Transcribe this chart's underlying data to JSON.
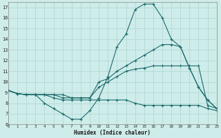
{
  "xlabel": "Humidex (Indice chaleur)",
  "xlim": [
    0,
    23
  ],
  "ylim": [
    6,
    17.5
  ],
  "xticks": [
    0,
    1,
    2,
    3,
    4,
    5,
    6,
    7,
    8,
    9,
    10,
    11,
    12,
    13,
    14,
    15,
    16,
    17,
    18,
    19,
    20,
    21,
    22,
    23
  ],
  "yticks": [
    6,
    7,
    8,
    9,
    10,
    11,
    12,
    13,
    14,
    15,
    16,
    17
  ],
  "bg_color": "#ceecea",
  "grid_color": "#b2d8d4",
  "line_color": "#1a6b6b",
  "lines": [
    {
      "x": [
        0,
        1,
        2,
        3,
        4,
        5,
        6,
        7,
        8,
        9,
        10,
        11,
        12,
        13,
        14,
        15,
        16,
        17,
        18,
        19,
        20,
        21,
        22,
        23
      ],
      "y": [
        9.2,
        8.9,
        8.8,
        8.8,
        8.0,
        7.5,
        7.0,
        6.5,
        6.5,
        7.3,
        8.5,
        10.5,
        13.3,
        14.5,
        16.8,
        17.3,
        17.3,
        16.0,
        14.0,
        13.3,
        11.3,
        9.5,
        8.3,
        7.5
      ]
    },
    {
      "x": [
        0,
        1,
        2,
        3,
        4,
        5,
        6,
        7,
        8,
        9,
        10,
        11,
        12,
        13,
        14,
        15,
        16,
        17,
        18,
        19,
        20,
        21,
        22,
        23
      ],
      "y": [
        9.2,
        8.9,
        8.8,
        8.8,
        8.8,
        8.8,
        8.8,
        8.5,
        8.5,
        8.5,
        10.0,
        10.3,
        11.0,
        11.5,
        12.0,
        12.5,
        13.0,
        13.5,
        13.5,
        13.3,
        11.3,
        9.5,
        8.3,
        7.5
      ]
    },
    {
      "x": [
        0,
        1,
        2,
        3,
        4,
        5,
        6,
        7,
        8,
        9,
        10,
        11,
        12,
        13,
        14,
        15,
        16,
        17,
        18,
        19,
        20,
        21,
        22,
        23
      ],
      "y": [
        9.2,
        8.9,
        8.8,
        8.8,
        8.8,
        8.8,
        8.5,
        8.5,
        8.5,
        8.5,
        9.5,
        10.0,
        10.5,
        11.0,
        11.2,
        11.3,
        11.5,
        11.5,
        11.5,
        11.5,
        11.5,
        11.5,
        7.8,
        7.5
      ]
    },
    {
      "x": [
        0,
        1,
        2,
        3,
        4,
        5,
        6,
        7,
        8,
        9,
        10,
        11,
        12,
        13,
        14,
        15,
        16,
        17,
        18,
        19,
        20,
        21,
        22,
        23
      ],
      "y": [
        9.2,
        8.9,
        8.8,
        8.8,
        8.8,
        8.5,
        8.3,
        8.3,
        8.3,
        8.3,
        8.3,
        8.3,
        8.3,
        8.3,
        8.0,
        7.8,
        7.8,
        7.8,
        7.8,
        7.8,
        7.8,
        7.8,
        7.5,
        7.3
      ]
    }
  ]
}
